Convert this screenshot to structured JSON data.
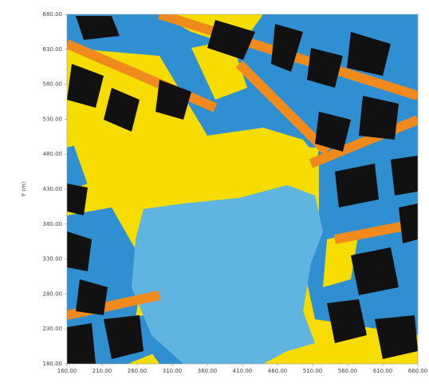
{
  "chart_data": {
    "type": "map",
    "ylabel": "Y (m)",
    "xlim": [
      160,
      660
    ],
    "ylim": [
      180,
      680
    ],
    "xticks": [
      {
        "value": 160,
        "label": "160.00"
      },
      {
        "value": 210,
        "label": "210.00"
      },
      {
        "value": 260,
        "label": "260.00"
      },
      {
        "value": 310,
        "label": "310.00"
      },
      {
        "value": 360,
        "label": "360.00"
      },
      {
        "value": 410,
        "label": "410.00"
      },
      {
        "value": 460,
        "label": "460.00"
      },
      {
        "value": 510,
        "label": "510.00"
      },
      {
        "value": 560,
        "label": "560.00"
      },
      {
        "value": 610,
        "label": "610.00"
      },
      {
        "value": 660,
        "label": "660.00"
      }
    ],
    "yticks": [
      {
        "value": 180,
        "label": "180.00"
      },
      {
        "value": 230,
        "label": "230.00"
      },
      {
        "value": 280,
        "label": "280.00"
      },
      {
        "value": 330,
        "label": "330.00"
      },
      {
        "value": 380,
        "label": "380.00"
      },
      {
        "value": 430,
        "label": "430.00"
      },
      {
        "value": 480,
        "label": "480.00"
      },
      {
        "value": 530,
        "label": "530.00"
      },
      {
        "value": 580,
        "label": "580.00"
      },
      {
        "value": 630,
        "label": "630.00"
      },
      {
        "value": 680,
        "label": "680.00"
      }
    ]
  }
}
